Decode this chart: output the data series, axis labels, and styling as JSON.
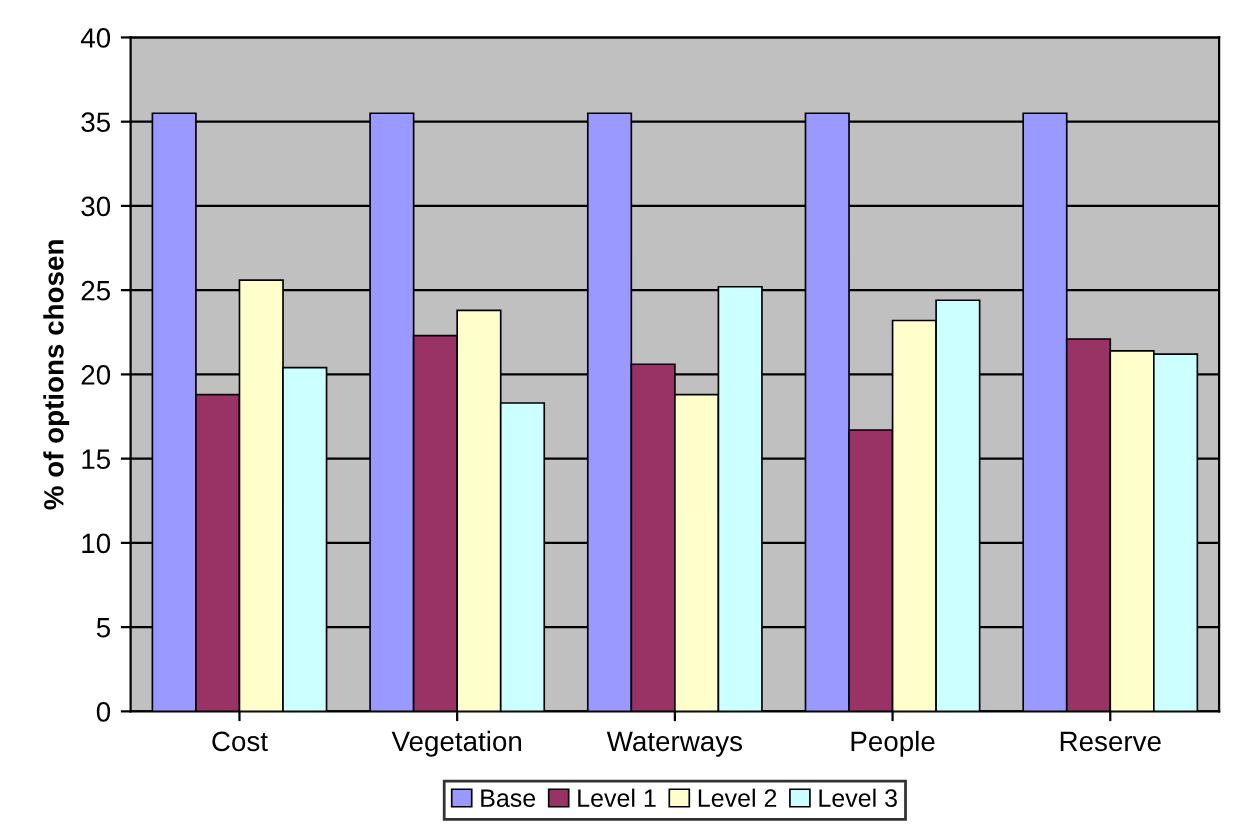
{
  "chart_data": {
    "type": "bar",
    "ylabel": "% of options chosen",
    "categories": [
      "Cost",
      "Vegetation",
      "Waterways",
      "People",
      "Reserve"
    ],
    "series": [
      {
        "name": "Base",
        "color": "#9999ff",
        "values": [
          35.5,
          35.5,
          35.5,
          35.5,
          35.5
        ]
      },
      {
        "name": "Level 1",
        "color": "#993366",
        "values": [
          18.8,
          22.3,
          20.6,
          16.7,
          22.1
        ]
      },
      {
        "name": "Level 2",
        "color": "#ffffcc",
        "values": [
          25.6,
          23.8,
          18.8,
          23.2,
          21.4
        ]
      },
      {
        "name": "Level 3",
        "color": "#ccffff",
        "values": [
          20.4,
          18.3,
          25.2,
          24.4,
          21.2
        ]
      }
    ],
    "ylim": [
      0,
      40
    ],
    "yticks": [
      0,
      5,
      10,
      15,
      20,
      25,
      30,
      35,
      40
    ],
    "grid": "y",
    "legend": "bottom"
  }
}
